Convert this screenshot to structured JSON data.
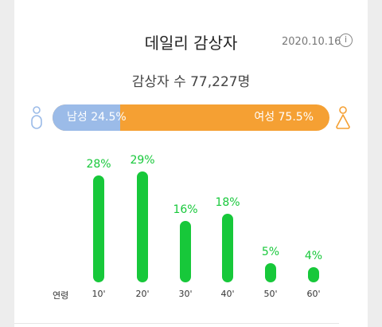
{
  "header": {
    "title": "데일리 감상자",
    "date": "2020.10.16",
    "info_icon": "info-icon",
    "info_glyph": "i"
  },
  "summary": {
    "viewer_count": "감상자 수 77,227명"
  },
  "gender": {
    "male_label": "남성 24.5%",
    "female_label": "여성 75.5%",
    "male_share": 24.5,
    "female_share": 75.5,
    "male_color": "#9bbbe8",
    "female_color": "#f5a033",
    "male_icon": "male-person-icon",
    "female_icon": "female-person-icon"
  },
  "chart_data": {
    "type": "bar",
    "xlabel": "연령",
    "categories": [
      "10'",
      "20'",
      "30'",
      "40'",
      "50'",
      "60'"
    ],
    "values": [
      28,
      29,
      16,
      18,
      5,
      4
    ],
    "value_labels": [
      "28%",
      "29%",
      "16%",
      "18%",
      "5%",
      "4%"
    ],
    "color": "#17c83a"
  }
}
